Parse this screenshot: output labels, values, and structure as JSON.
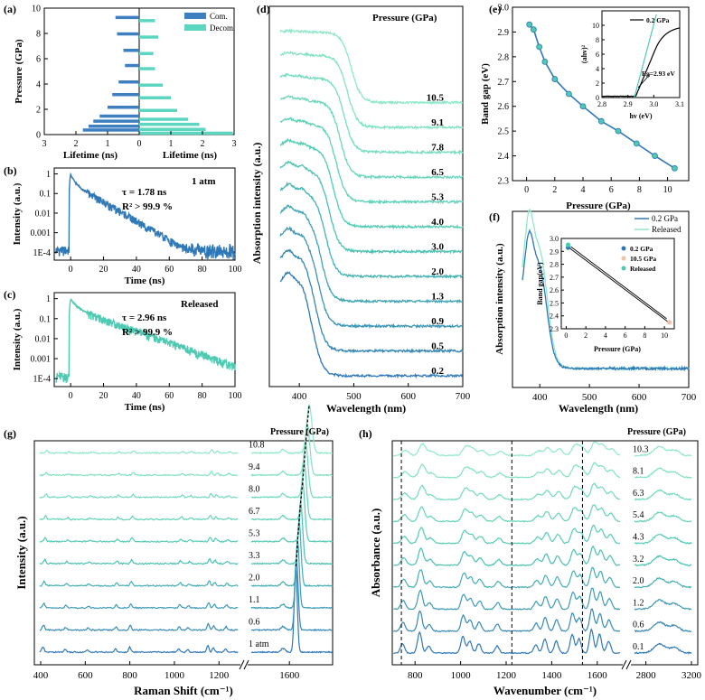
{
  "colors": {
    "com": "#3d7fc0",
    "decom": "#5cd6c0",
    "blue": "#2f78b8",
    "teal": "#4ec9b2",
    "light": "#8ee8c9",
    "axis": "#000000"
  },
  "chart_data": [
    {
      "id": "a",
      "type": "bar",
      "panel_label": "(a)",
      "orientation": "horizontal-butterfly",
      "ylabel": "Pressure (GPa)",
      "xlabel_left": "Lifetime (ns)",
      "xlabel_right": "Lifetime (ns)",
      "x_ticks": [
        "3",
        "2",
        "1",
        "0",
        "1",
        "2",
        "3"
      ],
      "y_ticks": [
        "0",
        "2",
        "4",
        "6",
        "8",
        "10"
      ],
      "ylim": [
        0,
        10
      ],
      "legend": [
        "Com.",
        "Decom."
      ],
      "series": [
        {
          "name": "Com.",
          "pressure": [
            0.2,
            0.5,
            0.9,
            1.3,
            2.0,
            3.0,
            4.0,
            5.3,
            6.5,
            7.8,
            9.1
          ],
          "lifetime": [
            1.78,
            1.6,
            1.45,
            1.25,
            1.0,
            0.85,
            0.65,
            0.45,
            0.5,
            0.7,
            0.75
          ]
        },
        {
          "name": "Decom.",
          "pressure": [
            0.2,
            0.5,
            0.9,
            1.3,
            2.0,
            3.0,
            4.0,
            5.3,
            6.5,
            7.8,
            9.1
          ],
          "lifetime": [
            2.96,
            2.1,
            1.9,
            1.55,
            1.2,
            1.0,
            0.75,
            0.5,
            0.45,
            0.6,
            0.5
          ]
        }
      ]
    },
    {
      "id": "b",
      "type": "scatter",
      "panel_label": "(b)",
      "ylabel": "Intensity (a.u.)",
      "xlabel": "Time (ns)",
      "x_ticks": [
        "0",
        "20",
        "40",
        "60",
        "80",
        "100"
      ],
      "y_ticks": [
        "1",
        "0.1",
        "0.01",
        "0.001",
        "1E-4"
      ],
      "xlim": [
        -10,
        100
      ],
      "yscale": "log",
      "ylim": [
        4e-05,
        2
      ],
      "condition": "1 atm",
      "tau": "τ = 1.78 ns",
      "r2": "R² > 99.9 %",
      "tau_ns": 1.78
    },
    {
      "id": "c",
      "type": "scatter",
      "panel_label": "(c)",
      "ylabel": "Intensity (a.u.)",
      "xlabel": "Time (ns)",
      "x_ticks": [
        "0",
        "20",
        "40",
        "60",
        "80",
        "100"
      ],
      "y_ticks": [
        "1",
        "0.1",
        "0.01",
        "0.001",
        "1E-4"
      ],
      "xlim": [
        -10,
        100
      ],
      "yscale": "log",
      "ylim": [
        4e-05,
        2
      ],
      "condition": "Released",
      "tau": "τ = 2.96 ns",
      "r2": "R² > 99.9 %",
      "tau_ns": 2.96
    },
    {
      "id": "d",
      "type": "line",
      "panel_label": "(d)",
      "ylabel": "Absorption intensity (a.u.)",
      "xlabel": "Wavelength (nm)",
      "x_ticks": [
        "400",
        "500",
        "600",
        "700"
      ],
      "xlim": [
        345,
        700
      ],
      "legend_title": "Pressure (GPa)",
      "pressures": [
        "0.2",
        "0.5",
        "0.9",
        "1.3",
        "2.0",
        "3.0",
        "4.0",
        "5.3",
        "6.5",
        "7.8",
        "9.1",
        "10.5"
      ],
      "edge_nm": [
        425,
        430,
        435,
        440,
        448,
        455,
        462,
        468,
        475,
        482,
        488,
        495
      ]
    },
    {
      "id": "e",
      "type": "line",
      "panel_label": "(e)",
      "ylabel": "Band gap (eV)",
      "xlabel": "Pressure (GPa)",
      "x_ticks": [
        "0",
        "2",
        "4",
        "6",
        "8",
        "10"
      ],
      "y_ticks": [
        "2.3",
        "2.4",
        "2.5",
        "2.6",
        "2.7",
        "2.8",
        "2.9",
        "3.0"
      ],
      "xlim": [
        -1,
        11.5
      ],
      "ylim": [
        2.3,
        3.0
      ],
      "x": [
        0.2,
        0.5,
        0.9,
        1.3,
        2.0,
        3.0,
        4.0,
        5.3,
        6.5,
        7.8,
        9.1,
        10.5
      ],
      "y": [
        2.93,
        2.91,
        2.84,
        2.78,
        2.71,
        2.65,
        2.6,
        2.54,
        2.5,
        2.45,
        2.4,
        2.35
      ],
      "inset": {
        "ylabel": "(ahv)²",
        "xlabel": "hv (eV)",
        "x_ticks": [
          "2.8",
          "2.9",
          "3.0",
          "3.1"
        ],
        "y_ticks": [
          "0",
          "2",
          "4",
          "6",
          "8",
          "10"
        ],
        "xlim": [
          2.8,
          3.1
        ],
        "ylim": [
          0,
          12
        ],
        "legend": "0.2 GPa",
        "annotation": "Eg=2.93 eV"
      }
    },
    {
      "id": "f",
      "type": "line",
      "panel_label": "(f)",
      "ylabel": "Absorption intensity (a.u.)",
      "xlabel": "Wavelength (nm)",
      "x_ticks": [
        "400",
        "500",
        "600",
        "700"
      ],
      "xlim": [
        345,
        700
      ],
      "legend": [
        "0.2 GPa",
        "Released"
      ],
      "inset": {
        "ylabel": "Band gap(eV)",
        "xlabel": "Pressure (GPa)",
        "x_ticks": [
          "0",
          "2",
          "4",
          "6",
          "8",
          "10"
        ],
        "y_ticks": [
          "2.3",
          "2.4",
          "2.5",
          "2.6",
          "2.7",
          "2.8",
          "2.9",
          "3.0"
        ],
        "xlim": [
          -0.5,
          11
        ],
        "ylim": [
          2.3,
          3.0
        ],
        "legend": [
          "0.2 GPa",
          "10.5 GPa",
          "Released"
        ],
        "points": [
          {
            "name": "0.2 GPa",
            "x": 0.2,
            "y": 2.93
          },
          {
            "name": "10.5 GPa",
            "x": 10.5,
            "y": 2.35
          },
          {
            "name": "Released",
            "x": 0.2,
            "y": 2.95
          }
        ]
      }
    },
    {
      "id": "g",
      "type": "line",
      "panel_label": "(g)",
      "ylabel": "Intensity (a.u.)",
      "xlabel": "Raman Shift (cm⁻¹)",
      "x_ticks": [
        "400",
        "600",
        "800",
        "1000",
        "1200",
        "1600"
      ],
      "legend_title": "Pressure (GPa)",
      "pressures": [
        "1 atm",
        "0.6",
        "1.1",
        "2.0",
        "3.3",
        "5.3",
        "6.7",
        "8.0",
        "9.4",
        "10.8"
      ],
      "main_peak": [
        1625,
        1628,
        1632,
        1638,
        1644,
        1652,
        1658,
        1664,
        1670,
        1678
      ]
    },
    {
      "id": "h",
      "type": "line",
      "panel_label": "(h)",
      "ylabel": "Absorbance (a.u.)",
      "xlabel": "Wavenumber (cm⁻¹)",
      "x_ticks": [
        "800",
        "1000",
        "1200",
        "1400",
        "1600",
        "2800",
        "3200"
      ],
      "legend_title": "Pressure (GPa)",
      "pressures": [
        "0.1",
        "0.6",
        "1.2",
        "2.0",
        "3.2",
        "4.3",
        "5.4",
        "6.3",
        "8.1",
        "10.3"
      ],
      "dashed_lines_cm": [
        740,
        1225,
        1535
      ]
    }
  ]
}
